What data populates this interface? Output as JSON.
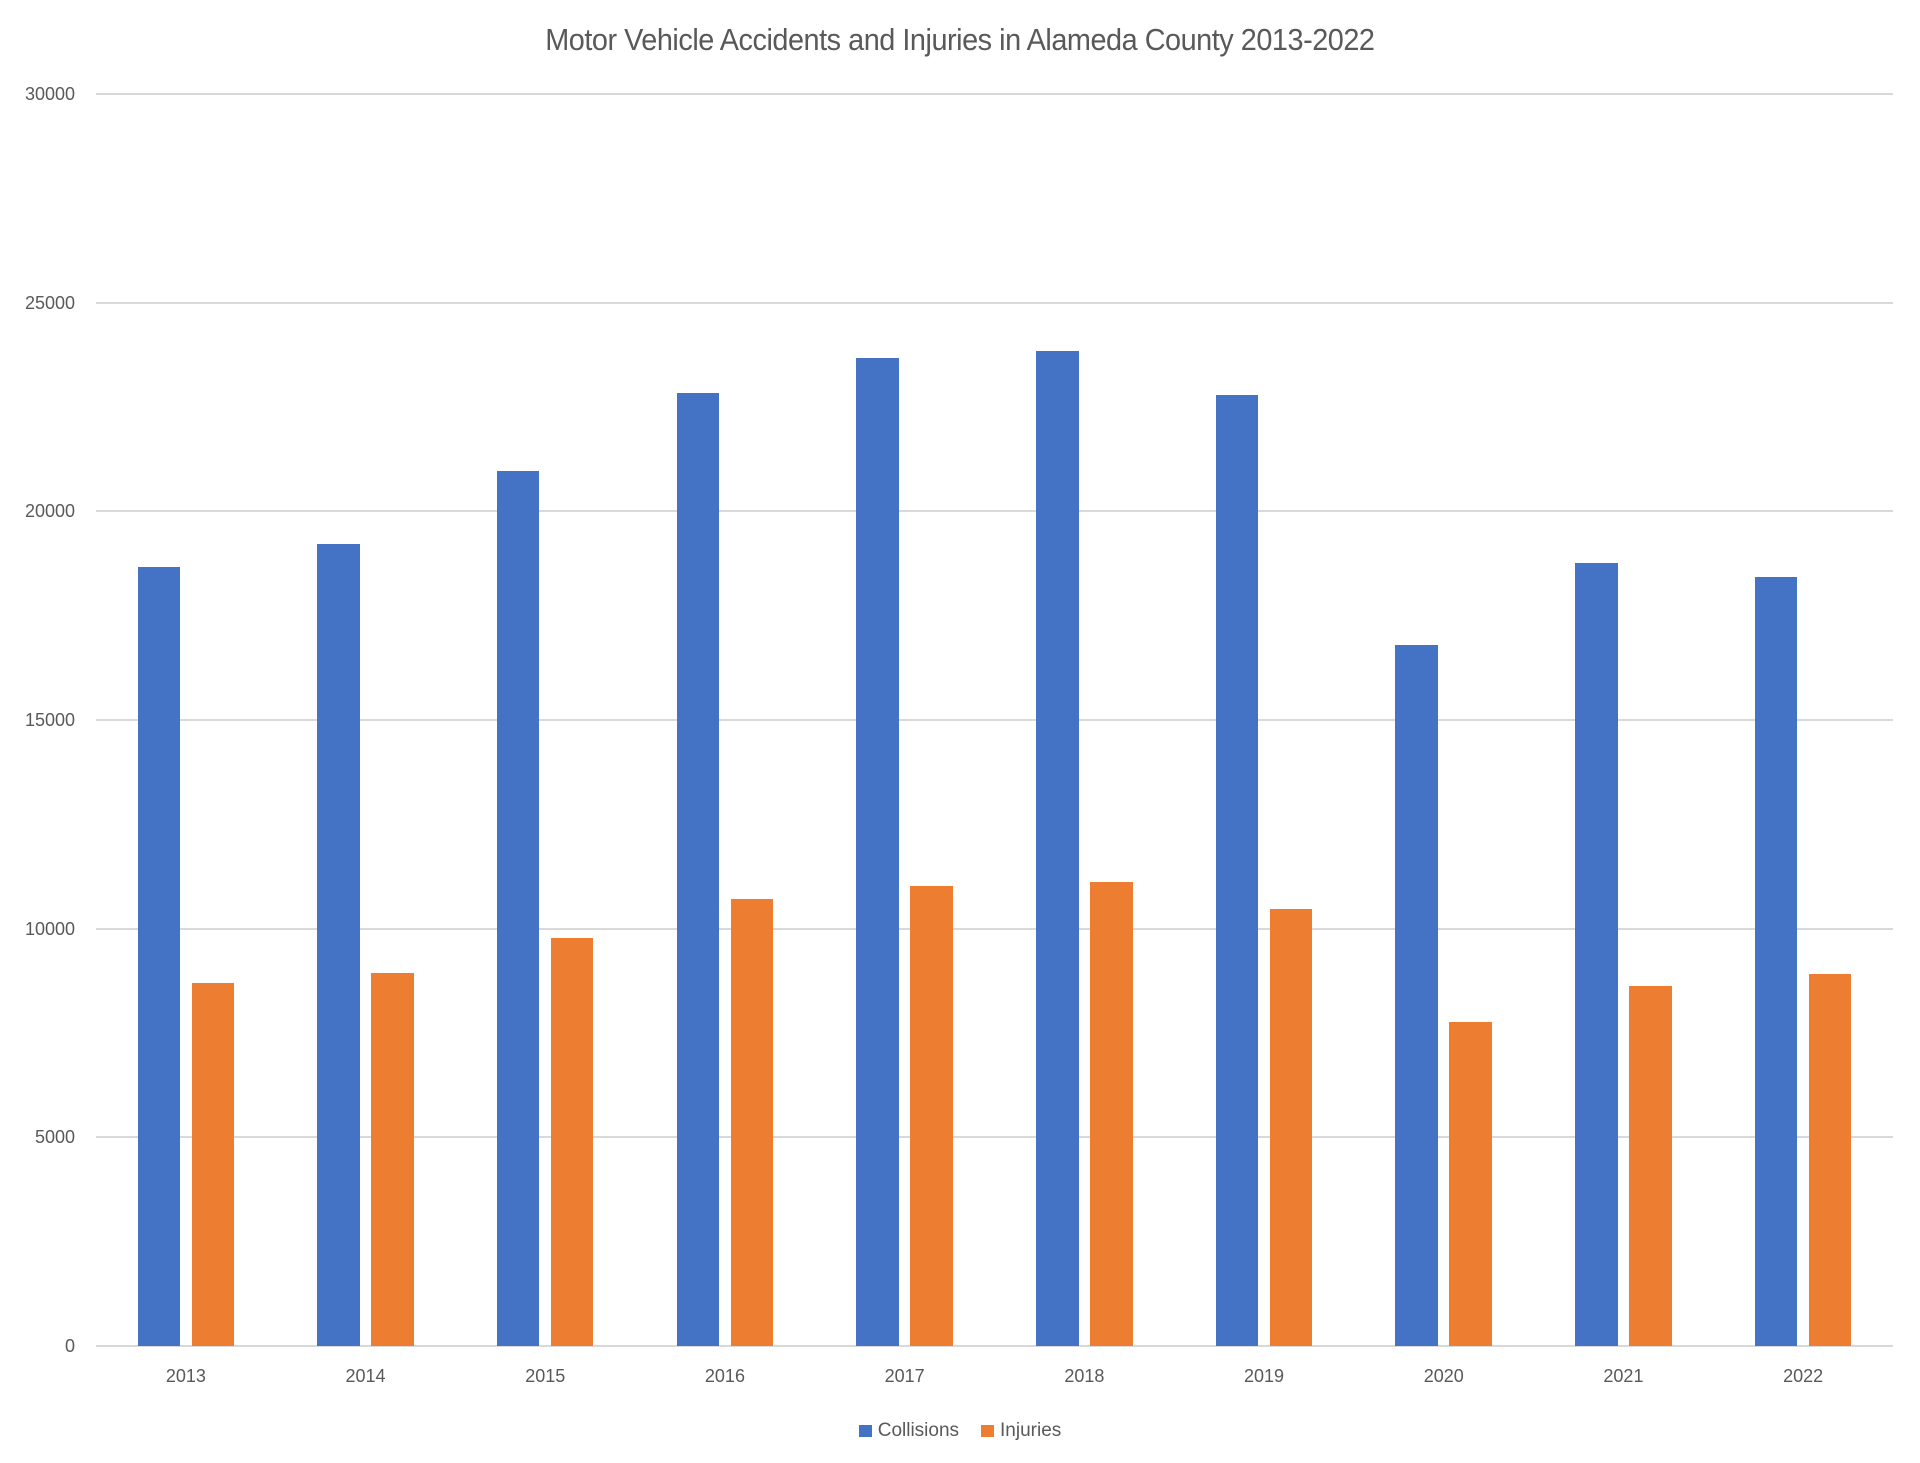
{
  "chart_data": {
    "type": "bar",
    "title": "Motor Vehicle Accidents and Injuries in Alameda County 2013-2022",
    "xlabel": "",
    "ylabel": "",
    "categories": [
      "2013",
      "2014",
      "2015",
      "2016",
      "2017",
      "2018",
      "2019",
      "2020",
      "2021",
      "2022"
    ],
    "series": [
      {
        "name": "Collisions",
        "color": "#4472C4",
        "values": [
          18670,
          19210,
          20960,
          22840,
          23670,
          23850,
          22780,
          16800,
          18760,
          18430
        ]
      },
      {
        "name": "Injuries",
        "color": "#ED7D31",
        "values": [
          8710,
          8950,
          9770,
          10720,
          11030,
          11130,
          10460,
          7760,
          8630,
          8910
        ]
      }
    ],
    "ylim": [
      0,
      30000
    ],
    "yticks": [
      "0",
      "5000",
      "10000",
      "15000",
      "20000",
      "25000",
      "30000"
    ],
    "grid": true,
    "legend_position": "bottom"
  },
  "legend": {
    "items": [
      {
        "label": "Collisions",
        "color": "#4472C4"
      },
      {
        "label": "Injuries",
        "color": "#ED7D31"
      }
    ]
  }
}
